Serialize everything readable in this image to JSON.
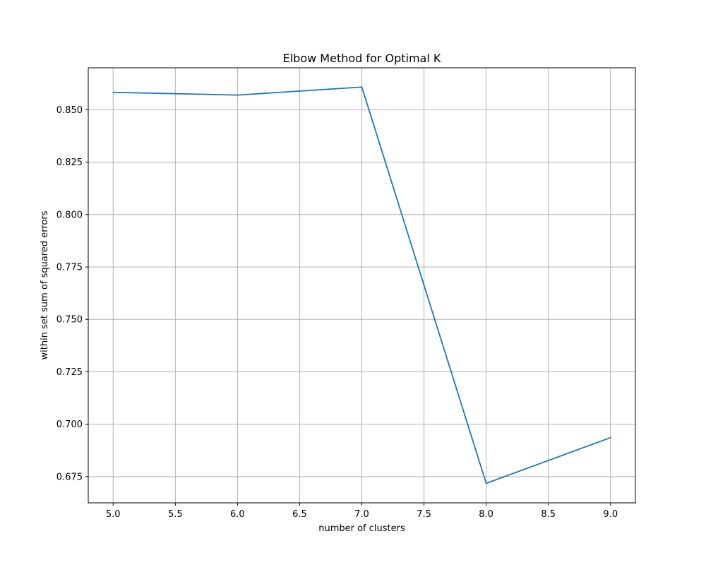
{
  "chart_data": {
    "type": "line",
    "title": "Elbow Method for Optimal K",
    "xlabel": "number of clusters",
    "ylabel": "within set sum of squared errors",
    "xlim": [
      4.8,
      9.2
    ],
    "ylim": [
      0.6625,
      0.87
    ],
    "x_ticks": [
      5.0,
      5.5,
      6.0,
      6.5,
      7.0,
      7.5,
      8.0,
      8.5,
      9.0
    ],
    "x_tick_labels": [
      "5.0",
      "5.5",
      "6.0",
      "6.5",
      "7.0",
      "7.5",
      "8.0",
      "8.5",
      "9.0"
    ],
    "y_ticks": [
      0.675,
      0.7,
      0.725,
      0.75,
      0.775,
      0.8,
      0.825,
      0.85
    ],
    "y_tick_labels": [
      "0.675",
      "0.700",
      "0.725",
      "0.750",
      "0.775",
      "0.800",
      "0.825",
      "0.850"
    ],
    "grid": true,
    "series": [
      {
        "color": "#1f77b4",
        "x": [
          5,
          6,
          7,
          8,
          9
        ],
        "y": [
          0.8583,
          0.857,
          0.8608,
          0.6718,
          0.6936
        ]
      }
    ]
  }
}
